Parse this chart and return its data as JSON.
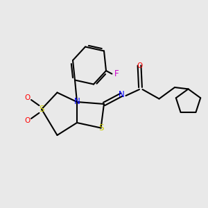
{
  "bg_color": "#e9e9e9",
  "bond_color": "#000000",
  "bond_lw": 1.5,
  "atom_colors": {
    "S": "#cccc00",
    "O": "#ff0000",
    "N": "#0000ff",
    "F": "#cc00cc",
    "C": "#000000"
  },
  "font_size": 8.5,
  "font_size_small": 7.5
}
